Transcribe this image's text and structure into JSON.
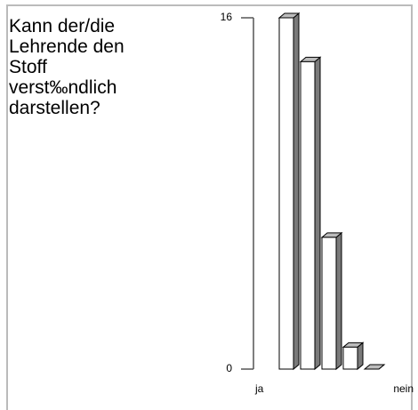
{
  "chart_data": {
    "type": "bar3d",
    "title": "Kann der/die Lehrende den Stoff verst‰ndlich darstellen?",
    "categories": [
      "ja",
      null,
      null,
      null,
      "nein"
    ],
    "values": [
      16,
      14,
      6,
      1,
      0
    ],
    "color": "#ffffff",
    "side_color": "#7a7a7a",
    "top_color": "#bdbdbd",
    "ylim": [
      0,
      16
    ],
    "yticks": [
      0,
      16
    ]
  }
}
